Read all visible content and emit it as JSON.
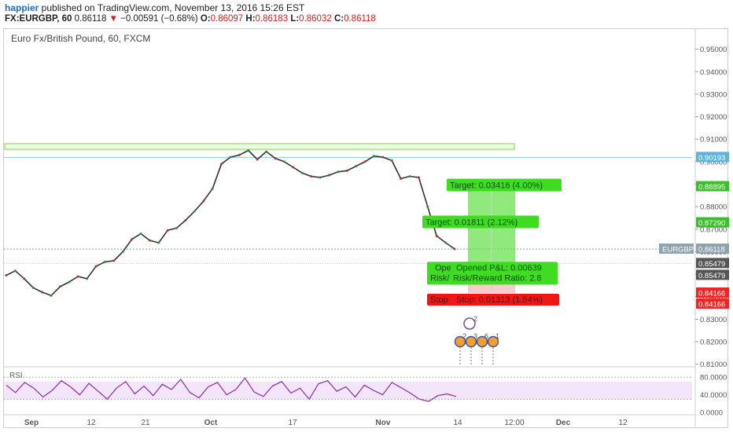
{
  "header": {
    "user": "happier",
    "published_text": " published on TradingView.com, November 13, 2016 15:26 EST",
    "symbol": "FX:EURGBP, 60",
    "last": "0.86118",
    "change_arrow": "▼",
    "change": "−0.00591 (−0.68%)",
    "open_label": "O:",
    "open": "0.86097",
    "high_label": "H:",
    "high": "0.86183",
    "low_label": "L:",
    "low": "0.86032",
    "close_label": "C:",
    "close": "0.86118"
  },
  "chart_data": {
    "type": "line",
    "title": "Euro Fx/British Pound, 60, FXCM",
    "price_axis": {
      "ylim": [
        0.8085,
        0.9565
      ],
      "ticks": [
        "0.95000",
        "0.94000",
        "0.93000",
        "0.92000",
        "0.91000",
        "0.90000",
        "0.89000",
        "0.88000",
        "0.87000",
        "0.86000",
        "0.85000",
        "0.84000",
        "0.83000",
        "0.82000",
        "0.81000"
      ],
      "tick_values": [
        0.95,
        0.94,
        0.93,
        0.92,
        0.91,
        0.9,
        0.89,
        0.88,
        0.87,
        0.86,
        0.85,
        0.84,
        0.83,
        0.82,
        0.81
      ]
    },
    "time_axis": {
      "labels": [
        "Sep",
        "12",
        "21",
        "Oct",
        "17",
        "Nov",
        "14",
        "12:00",
        "Dec",
        "12"
      ],
      "bold": [
        "Sep",
        "Oct",
        "Nov",
        "Dec"
      ]
    },
    "series": [
      {
        "x": [
          "Sep 1",
          "Sep 2",
          "Sep 5",
          "Sep 6",
          "Sep 7",
          "Sep 8",
          "Sep 9",
          "Sep 12",
          "Sep 13",
          "Sep 14",
          "Sep 15",
          "Sep 16",
          "Sep 19",
          "Sep 20",
          "Sep 21",
          "Sep 22",
          "Sep 23",
          "Sep 26",
          "Sep 27",
          "Sep 28",
          "Sep 29",
          "Sep 30",
          "Oct 3",
          "Oct 4",
          "Oct 6",
          "Oct 7",
          "Oct 10",
          "Oct 11",
          "Oct 12",
          "Oct 13",
          "Oct 14",
          "Oct 17",
          "Oct 18",
          "Oct 19",
          "Oct 20",
          "Oct 21",
          "Oct 24",
          "Oct 25",
          "Oct 26",
          "Oct 27",
          "Oct 28",
          "Oct 31",
          "Nov 1",
          "Nov 2",
          "Nov 3",
          "Nov 4",
          "Nov 7",
          "Nov 8",
          "Nov 9",
          "Nov 10",
          "Nov 11"
        ],
        "values": [
          0.8495,
          0.8515,
          0.848,
          0.844,
          0.842,
          0.8405,
          0.8445,
          0.8465,
          0.849,
          0.848,
          0.8535,
          0.8555,
          0.856,
          0.86,
          0.8655,
          0.868,
          0.865,
          0.864,
          0.8695,
          0.8705,
          0.874,
          0.878,
          0.8825,
          0.888,
          0.899,
          0.902,
          0.903,
          0.905,
          0.901,
          0.9045,
          0.9015,
          0.9,
          0.8975,
          0.895,
          0.8935,
          0.893,
          0.894,
          0.8955,
          0.896,
          0.898,
          0.9,
          0.9025,
          0.902,
          0.9005,
          0.8925,
          0.8935,
          0.893,
          0.88,
          0.867,
          0.864,
          0.8612
        ]
      }
    ],
    "levels": [
      {
        "value": 0.90193,
        "label": "0.90193",
        "color": "#87cbe8"
      },
      {
        "value": 0.86118,
        "label": "0.86118",
        "color": "#7aa0b0"
      }
    ],
    "resistance_zone": {
      "from": 0.9055,
      "to": 0.908,
      "color": "#7fd64c"
    },
    "price_labels": [
      {
        "text": "0.90193",
        "bg": "#5db4dc"
      },
      {
        "text": "0.88895",
        "bg": "#39c228"
      },
      {
        "text": "0.87290",
        "bg": "#39c228"
      },
      {
        "text": "EURGBP",
        "bg": "#8ea3ad"
      },
      {
        "text": "0.86118",
        "bg": "#8ea3ad"
      },
      {
        "text": "0.85479",
        "bg": "#555555"
      },
      {
        "text": "0.85479",
        "bg": "#555555"
      },
      {
        "text": "0.84166",
        "bg": "#f02424"
      },
      {
        "text": "0.84166",
        "bg": "#f02424"
      }
    ],
    "position_tool": {
      "entry": 0.85479,
      "target_far": 0.88895,
      "target_near": 0.8729,
      "stop": 0.84166,
      "target_far_label": "Target: 0.03416 (4.00%)",
      "target_near_label": "Target: 0.01811 (2.12%)",
      "pnl_back_label": "Ope",
      "risk_back_label": "Risk/",
      "pnl_label": "Opened P&L: 0.00639",
      "risk_label": "Risk/Reward Ratio: 2.6",
      "stop_back_label": "Stop",
      "stop_label": "Stop: 0.01313 (1.54%)"
    },
    "event_markers": [
      "2",
      "2",
      "3",
      "6",
      "1",
      "2"
    ],
    "rsi": {
      "label": "RSI",
      "ylim": [
        0,
        100
      ],
      "ticks": [
        "80.0000",
        "40.0000",
        "0.0000"
      ],
      "tick_values": [
        80,
        40,
        0
      ],
      "band": [
        30,
        70
      ],
      "color": "#8a2aa8",
      "values": [
        62,
        45,
        68,
        55,
        35,
        50,
        72,
        58,
        40,
        66,
        48,
        30,
        55,
        70,
        42,
        60,
        38,
        64,
        52,
        75,
        45,
        33,
        58,
        68,
        40,
        52,
        78,
        46,
        36,
        60,
        70,
        44,
        55,
        30,
        65,
        72,
        48,
        58,
        35,
        62,
        50,
        40,
        68,
        56,
        44,
        30,
        25,
        38,
        42,
        36
      ]
    }
  }
}
